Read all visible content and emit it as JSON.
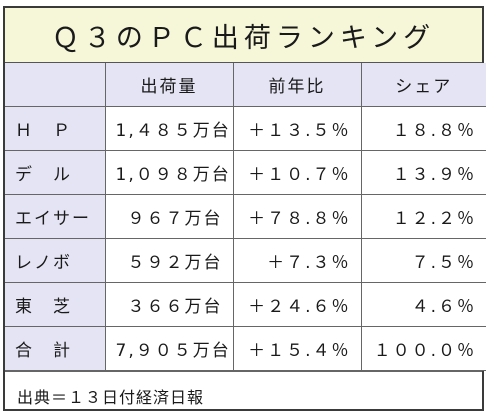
{
  "title": "Ｑ３のＰＣ出荷ランキング",
  "table": {
    "headers": [
      "",
      "出荷量",
      "前年比",
      "シェア"
    ],
    "rows": [
      {
        "name": "Ｈ　Ｐ",
        "shipments": "1,４８５万台",
        "yoy": "＋１３.５％",
        "share": "１８.８％"
      },
      {
        "name": "デ　ル",
        "shipments": "1,０９８万台",
        "yoy": "＋１０.７％",
        "share": "１３.９％"
      },
      {
        "name": "エイサー",
        "shipments": "９６７万台",
        "yoy": "＋７８.８％",
        "share": "１２.２％"
      },
      {
        "name": "レノボ",
        "shipments": "５９２万台",
        "yoy": "＋７.３％",
        "share": "７.５％"
      },
      {
        "name": "東　芝",
        "shipments": "３６６万台",
        "yoy": "＋２４.６％",
        "share": "４.６％"
      },
      {
        "name": "合　計",
        "shipments": "7,９０５万台",
        "yoy": "＋１５.４％",
        "share": "１００.０％"
      }
    ]
  },
  "footer": "出典＝１３日付経済日報",
  "colors": {
    "title_bg": "#f6f6d8",
    "label_bg": "#e4e4f4",
    "border": "#3a3a3a"
  }
}
